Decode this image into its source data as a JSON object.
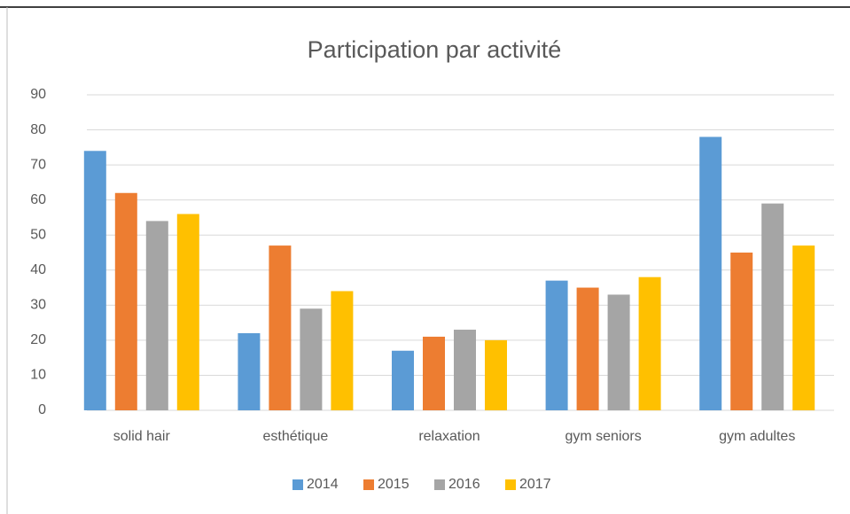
{
  "chart_data": {
    "type": "bar",
    "title": "Participation par activité",
    "categories": [
      "solid hair",
      "esthétique",
      "relaxation",
      "gym seniors",
      "gym adultes"
    ],
    "series": [
      {
        "name": "2014",
        "color": "#5b9bd5",
        "values": [
          74,
          22,
          17,
          37,
          78
        ]
      },
      {
        "name": "2015",
        "color": "#ed7d31",
        "values": [
          62,
          47,
          21,
          35,
          45
        ]
      },
      {
        "name": "2016",
        "color": "#a5a5a5",
        "values": [
          54,
          29,
          23,
          33,
          59
        ]
      },
      {
        "name": "2017",
        "color": "#ffc000",
        "values": [
          56,
          34,
          20,
          38,
          47
        ]
      }
    ],
    "ylim": [
      0,
      90
    ],
    "yticks": [
      0,
      10,
      20,
      30,
      40,
      50,
      60,
      70,
      80,
      90
    ],
    "grid": true,
    "legend": "bottom"
  }
}
